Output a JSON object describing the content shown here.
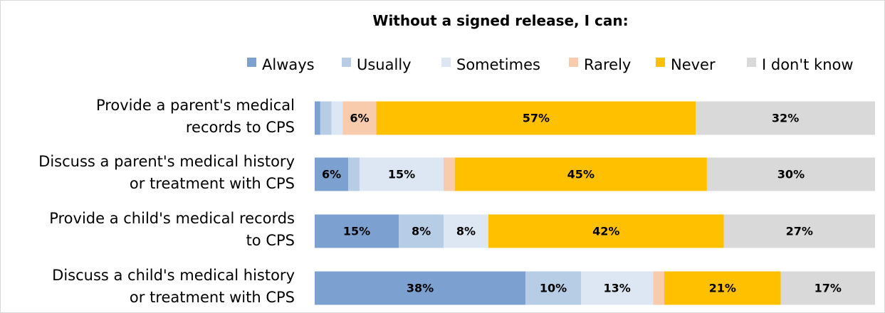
{
  "chart_data": {
    "type": "bar",
    "orientation": "horizontal",
    "stacked": true,
    "percent_stacked": true,
    "title": "Without a signed release, I can:",
    "legend_position": "top",
    "grid": false,
    "xlim": [
      0,
      100
    ],
    "categories": [
      [
        "Provide a parent's medical",
        "records to CPS"
      ],
      [
        "Discuss a parent's medical history",
        "or treatment with CPS"
      ],
      [
        "Provide a child's medical records",
        "to CPS"
      ],
      [
        "Discuss a child's medical history",
        "or treatment with CPS"
      ]
    ],
    "series": [
      {
        "name": "Always",
        "color": "#7ca0d0",
        "values": [
          1,
          6,
          15,
          38
        ],
        "labels": [
          "",
          "6%",
          "15%",
          "38%"
        ]
      },
      {
        "name": "Usually",
        "color": "#b7cde6",
        "values": [
          2,
          2,
          8,
          10
        ],
        "labels": [
          "",
          "",
          "8%",
          "10%"
        ]
      },
      {
        "name": "Sometimes",
        "color": "#dde7f3",
        "values": [
          2,
          15,
          8,
          13
        ],
        "labels": [
          "",
          "15%",
          "8%",
          "13%"
        ]
      },
      {
        "name": "Rarely",
        "color": "#f8cbad",
        "values": [
          6,
          2,
          0,
          2
        ],
        "labels": [
          "6%",
          "",
          "",
          ""
        ]
      },
      {
        "name": "Never",
        "color": "#ffc000",
        "values": [
          57,
          45,
          42,
          21
        ],
        "labels": [
          "57%",
          "45%",
          "42%",
          "21%"
        ]
      },
      {
        "name": "I don't know",
        "color": "#d9d9d9",
        "values": [
          32,
          30,
          27,
          17
        ],
        "labels": [
          "32%",
          "30%",
          "27%",
          "17%"
        ]
      }
    ]
  }
}
